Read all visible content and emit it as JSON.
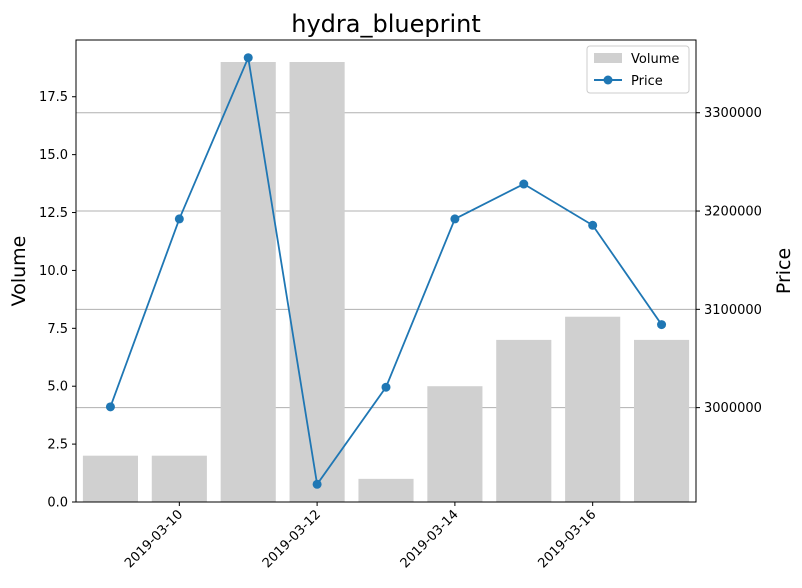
{
  "chart_data": {
    "type": "bar+line",
    "title": "hydra_blueprint",
    "xlabel": "",
    "dates": [
      "2019-03-09",
      "2019-03-10",
      "2019-03-11",
      "2019-03-12",
      "2019-03-13",
      "2019-03-14",
      "2019-03-15",
      "2019-03-16",
      "2019-03-17"
    ],
    "x_ticks": [
      "2019-03-10",
      "2019-03-12",
      "2019-03-14",
      "2019-03-16"
    ],
    "series": [
      {
        "name": "Volume",
        "type": "bar",
        "axis": "left",
        "color": "#d0d0d0",
        "values": [
          2,
          2,
          19,
          19,
          1,
          5,
          7,
          8,
          7
        ]
      },
      {
        "name": "Price",
        "type": "line",
        "axis": "right",
        "color": "#1f77b4",
        "marker": "circle",
        "values": [
          3000800,
          3192000,
          3356000,
          2922000,
          3020800,
          3192000,
          3227500,
          3185500,
          3084500
        ]
      }
    ],
    "y_left": {
      "label": "Volume",
      "ylim": [
        0,
        19.95
      ],
      "ticks": [
        0,
        2.5,
        5,
        7.5,
        10,
        12.5,
        15,
        17.5
      ],
      "tick_labels": [
        "0.0",
        "2.5",
        "5.0",
        "7.5",
        "10.0",
        "12.5",
        "15.0",
        "17.5"
      ]
    },
    "y_right": {
      "label": "Price",
      "ylim": [
        2904000,
        3374000
      ],
      "ticks": [
        3000000,
        3100000,
        3200000,
        3300000
      ],
      "tick_labels": [
        "3000000",
        "3100000",
        "3200000",
        "3300000"
      ]
    },
    "grid": "right-axis horizontal",
    "legend": {
      "placement": "top-right",
      "entries": [
        "Volume",
        "Price"
      ]
    }
  }
}
